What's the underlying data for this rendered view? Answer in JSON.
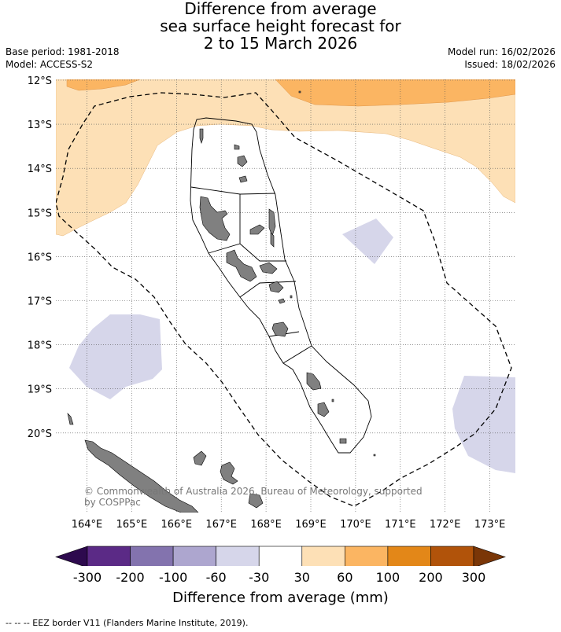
{
  "title": {
    "line1": "Difference from average",
    "line2": "sea surface height forecast for",
    "line3": "2 to 15 March 2026"
  },
  "meta_left": {
    "base_period": "Base period: 1981-2018",
    "model": "Model: ACCESS-S2"
  },
  "meta_right": {
    "model_run": "Model run: 16/02/2026",
    "issued": "Issued: 18/02/2026"
  },
  "map": {
    "lat_labels": [
      "12°S",
      "13°S",
      "14°S",
      "15°S",
      "16°S",
      "17°S",
      "18°S",
      "19°S",
      "20°S"
    ],
    "lon_labels": [
      "164°E",
      "165°E",
      "166°E",
      "167°E",
      "168°E",
      "169°E",
      "170°E",
      "171°E",
      "172°E",
      "173°E"
    ],
    "copyright_line1": "© Commonwealth of Australia 2026, Bureau of Meteorology, supported",
    "copyright_line2": "by COSPPac"
  },
  "colorbar": {
    "labels": [
      "-300",
      "-200",
      "-100",
      "-60",
      "-30",
      "30",
      "60",
      "100",
      "200",
      "300"
    ],
    "colors": [
      "#2d0a4e",
      "#5b2a86",
      "#8373ae",
      "#ada6cf",
      "#d6d6ea",
      "#ffffff",
      "#fde0b6",
      "#fbb562",
      "#e38718",
      "#b1530a",
      "#7a3607"
    ],
    "title": "Difference from average (mm)"
  },
  "footnote": "--  --  -- EEZ border V11 (Flanders Marine Institute, 2019)."
}
